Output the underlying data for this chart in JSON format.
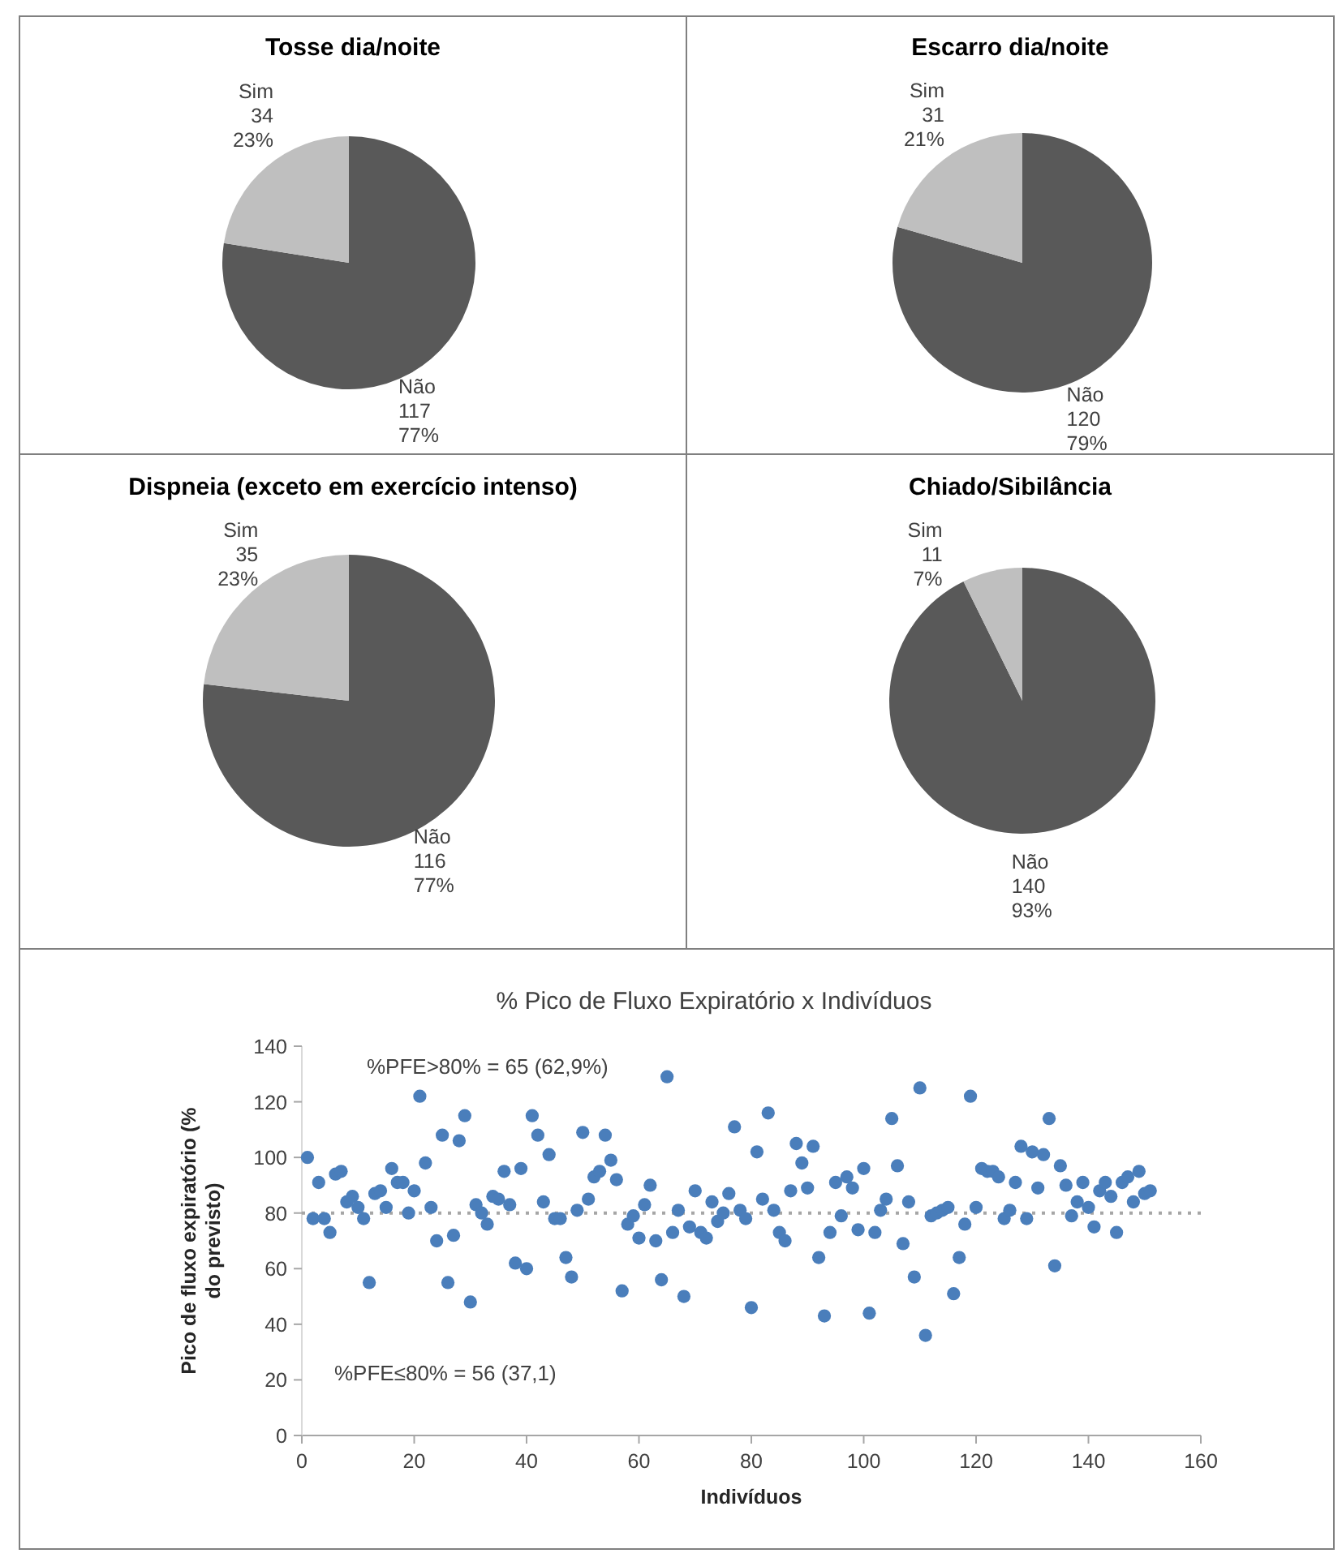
{
  "chart_data": [
    {
      "type": "pie",
      "title": "Tosse dia/noite",
      "categories": [
        "Não",
        "Sim"
      ],
      "values": [
        117,
        34
      ],
      "colors": [
        "#595959",
        "#bfbfbf"
      ],
      "value_labels": [
        "117\n77%",
        "34\n23%"
      ]
    },
    {
      "type": "pie",
      "title": "Escarro dia/noite",
      "categories": [
        "Não",
        "Sim"
      ],
      "values": [
        120,
        31
      ],
      "colors": [
        "#595959",
        "#bfbfbf"
      ],
      "value_labels": [
        "120\n79%",
        "31\n21%"
      ]
    },
    {
      "type": "pie",
      "title": "Dispneia (exceto em exercício intenso)",
      "categories": [
        "Não",
        "Sim"
      ],
      "values": [
        116,
        35
      ],
      "colors": [
        "#595959",
        "#bfbfbf"
      ],
      "value_labels": [
        "116\n77%",
        "35\n23%"
      ]
    },
    {
      "type": "pie",
      "title": "Chiado/Sibilância",
      "categories": [
        "Não",
        "Sim"
      ],
      "values": [
        140,
        11
      ],
      "colors": [
        "#595959",
        "#bfbfbf"
      ],
      "value_labels": [
        "140\n93%",
        "11\n7%"
      ]
    },
    {
      "type": "scatter",
      "title": "% Pico de Fluxo Expiratório x Indivíduos",
      "xlabel": "Indivíduos",
      "ylabel": "Pico de fluxo expiratório (% do previsto)",
      "marker": "circle",
      "color": "#4a7ebb",
      "x": [
        1,
        2,
        3,
        4,
        5,
        6,
        7,
        8,
        9,
        10,
        11,
        12,
        13,
        14,
        15,
        16,
        17,
        18,
        19,
        20,
        21,
        22,
        23,
        24,
        25,
        26,
        27,
        28,
        29,
        30,
        31,
        32,
        33,
        34,
        35,
        36,
        37,
        38,
        39,
        40,
        41,
        42,
        43,
        44,
        45,
        46,
        47,
        48,
        49,
        50,
        51,
        52,
        53,
        54,
        55,
        56,
        57,
        58,
        59,
        60,
        61,
        62,
        63,
        64,
        65,
        66,
        67,
        68,
        69,
        70,
        71,
        72,
        73,
        74,
        75,
        76,
        77,
        78,
        79,
        80,
        81,
        82,
        83,
        84,
        85,
        86,
        87,
        88,
        89,
        90,
        91,
        92,
        93,
        94,
        95,
        96,
        97,
        98,
        99,
        100,
        101,
        102,
        103,
        104,
        105,
        106,
        107,
        108,
        109,
        110,
        111,
        112,
        113,
        114,
        115,
        116,
        117,
        118,
        119,
        120,
        121,
        122,
        123,
        124,
        125,
        126,
        127,
        128,
        129,
        130,
        131,
        132,
        133,
        134,
        135,
        136,
        137,
        138,
        139,
        140,
        141,
        142,
        143,
        144,
        145,
        146,
        147,
        148,
        149,
        150,
        151
      ],
      "values": [
        100,
        78,
        91,
        78,
        73,
        94,
        95,
        84,
        86,
        82,
        78,
        55,
        87,
        88,
        82,
        96,
        91,
        91,
        80,
        88,
        122,
        98,
        82,
        70,
        108,
        55,
        72,
        106,
        115,
        48,
        83,
        80,
        76,
        86,
        85,
        95,
        83,
        62,
        96,
        60,
        115,
        108,
        84,
        101,
        78,
        78,
        64,
        57,
        81,
        109,
        85,
        93,
        95,
        108,
        99,
        92,
        52,
        76,
        79,
        71,
        83,
        90,
        70,
        56,
        129,
        73,
        81,
        50,
        75,
        88,
        73,
        71,
        84,
        77,
        80,
        87,
        111,
        81,
        78,
        46,
        102,
        85,
        116,
        81,
        73,
        70,
        88,
        105,
        98,
        89,
        104,
        64,
        43,
        73,
        91,
        79,
        93,
        89,
        74,
        96,
        44,
        73,
        81,
        85,
        114,
        97,
        69,
        84,
        57,
        125,
        36,
        79,
        80,
        81,
        82,
        51,
        64,
        76,
        122,
        82,
        96,
        95,
        95,
        93,
        78,
        81,
        91,
        104,
        78,
        102,
        89,
        101,
        114,
        61,
        97,
        90,
        79,
        84,
        91,
        82,
        75,
        88,
        91,
        86,
        73,
        91,
        93,
        84,
        95,
        87,
        88
      ],
      "xlim": [
        0,
        160
      ],
      "ylim": [
        0,
        140
      ],
      "xticks": [
        0,
        20,
        40,
        60,
        80,
        100,
        120,
        140,
        160
      ],
      "yticks": [
        0,
        20,
        40,
        60,
        80,
        100,
        120,
        140
      ],
      "ref_lines": [
        {
          "axis": "y",
          "value": 80,
          "color": "#a6a6a6",
          "line_style": "dotted"
        }
      ],
      "annotations": [
        "%PFE>80% = 65 (62,9%)",
        "%PFE≤80% = 56 (37,1)"
      ]
    }
  ]
}
